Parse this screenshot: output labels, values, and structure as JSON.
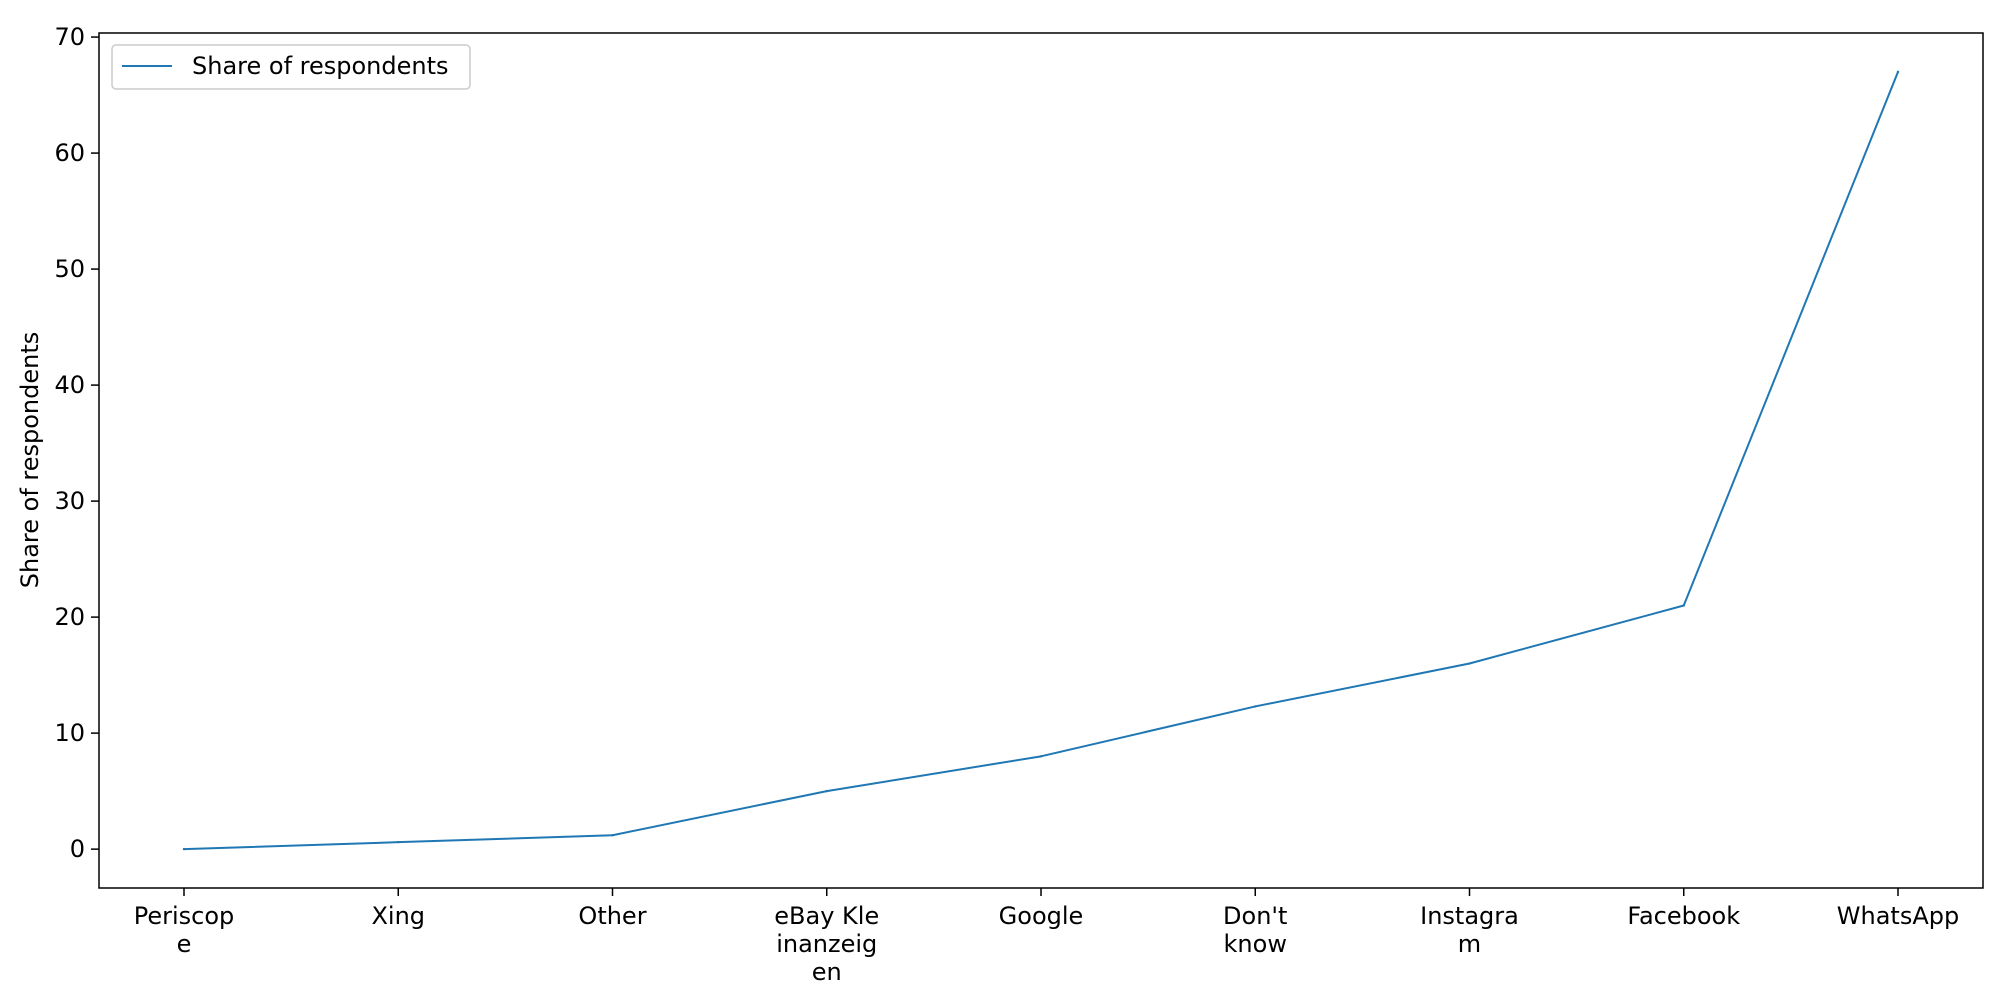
{
  "chart_data": {
    "type": "line",
    "categories_display": [
      [
        "Periscop",
        "e"
      ],
      [
        "Xing"
      ],
      [
        "Other"
      ],
      [
        "eBay Kle",
        "inanzeig",
        "en"
      ],
      [
        "Google"
      ],
      [
        "Don't",
        "know"
      ],
      [
        "Instagra",
        "m"
      ],
      [
        "Facebook"
      ],
      [
        "WhatsApp"
      ]
    ],
    "series": [
      {
        "name": "Share of respondents",
        "color": "#1f77b4",
        "values": [
          0.0,
          0.6,
          1.2,
          5.0,
          8.0,
          12.3,
          16.0,
          21.0,
          67.0
        ]
      }
    ],
    "ylabel": "Share of respondents",
    "xlabel": "",
    "yticks": [
      0,
      10,
      20,
      30,
      40,
      50,
      60,
      70
    ],
    "ylim": [
      -3.35,
      70.35
    ],
    "grid": false,
    "legend_position": "top-left"
  }
}
